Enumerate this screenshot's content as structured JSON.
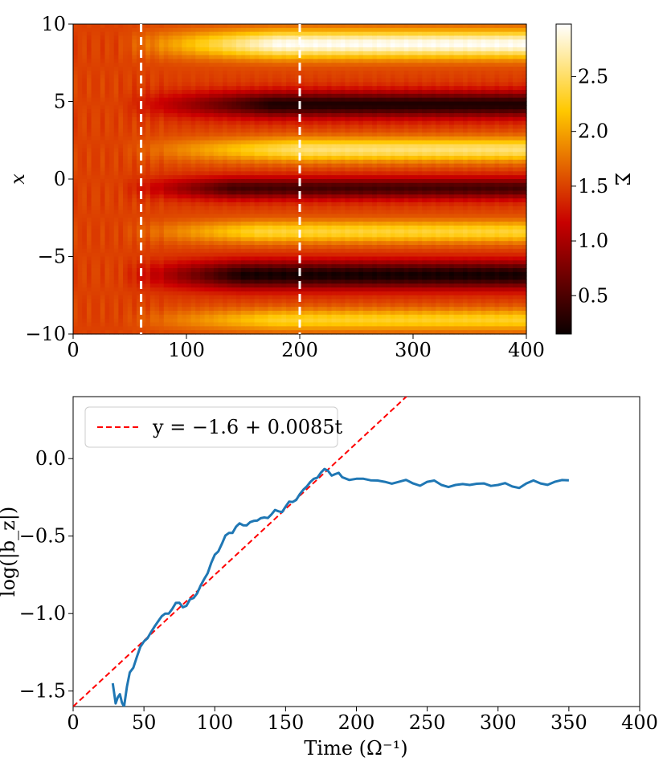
{
  "chart_data": [
    {
      "type": "heatmap",
      "xlabel": "",
      "ylabel": "x",
      "xlim": [
        0,
        400
      ],
      "ylim": [
        -10,
        10
      ],
      "xticks": [
        0,
        100,
        200,
        300,
        400
      ],
      "xtick_labels": [
        "0",
        "100",
        "200",
        "300",
        "400"
      ],
      "yticks": [
        -10,
        -5,
        0,
        5,
        10
      ],
      "ytick_labels": [
        "−10",
        "−5",
        "0",
        "5",
        "10"
      ],
      "colormap": "hot",
      "colorbar": {
        "label": "Σ",
        "range": [
          0.15,
          2.98
        ],
        "ticks": [
          0.5,
          1.0,
          1.5,
          2.0,
          2.5
        ],
        "tick_labels": [
          "0.5",
          "1.0",
          "1.5",
          "2.0",
          "2.5"
        ]
      },
      "vlines": [
        {
          "x": 60,
          "style": "dashed",
          "color": "#ffffff"
        },
        {
          "x": 200,
          "style": "dashed",
          "color": "#ffffff"
        }
      ],
      "bands": [
        {
          "center": 8.7,
          "width": 0.9,
          "amp": 1.45,
          "t_start": 180
        },
        {
          "center": 4.8,
          "width": 0.85,
          "amp": -1.25,
          "t_start": 175
        },
        {
          "center": 1.9,
          "width": 0.75,
          "amp": 1.05,
          "t_start": 200
        },
        {
          "center": -0.6,
          "width": 0.7,
          "amp": -1.05,
          "t_start": 140
        },
        {
          "center": -3.4,
          "width": 0.7,
          "amp": 0.85,
          "t_start": 165
        },
        {
          "center": -6.2,
          "width": 0.9,
          "amp": -1.3,
          "t_start": 150
        },
        {
          "center": -9.1,
          "width": 0.7,
          "amp": 0.8,
          "t_start": 180
        }
      ],
      "base_value": 1.5
    },
    {
      "type": "line",
      "xlabel": "Time (Ω⁻¹)",
      "ylabel": "log(|b_z|)",
      "xlim": [
        0,
        400
      ],
      "ylim": [
        -1.6,
        0.4
      ],
      "xticks": [
        0,
        50,
        100,
        150,
        200,
        250,
        300,
        350,
        400
      ],
      "xtick_labels": [
        "0",
        "50",
        "100",
        "150",
        "200",
        "250",
        "300",
        "350",
        "400"
      ],
      "yticks": [
        -1.5,
        -1.0,
        -0.5,
        0.0
      ],
      "ytick_labels": [
        "−1.5",
        "−1.0",
        "−0.5",
        "0.0"
      ],
      "series": [
        {
          "name": "log(|b_z|)",
          "color": "#1f77b4",
          "style": "solid",
          "x": [
            28,
            30,
            33,
            36,
            40,
            45,
            50,
            55,
            60,
            65,
            70,
            75,
            80,
            85,
            90,
            95,
            100,
            105,
            110,
            115,
            120,
            125,
            130,
            135,
            140,
            145,
            150,
            155,
            160,
            165,
            170,
            175,
            180,
            185,
            190,
            200,
            210,
            220,
            230,
            240,
            250,
            260,
            270,
            280,
            290,
            300,
            310,
            320,
            330,
            340,
            350
          ],
          "y": [
            -1.45,
            -1.58,
            -1.52,
            -1.6,
            -1.38,
            -1.28,
            -1.18,
            -1.12,
            -1.05,
            -1.0,
            -0.97,
            -0.93,
            -0.95,
            -0.9,
            -0.82,
            -0.74,
            -0.62,
            -0.55,
            -0.48,
            -0.44,
            -0.43,
            -0.41,
            -0.4,
            -0.38,
            -0.36,
            -0.34,
            -0.31,
            -0.28,
            -0.23,
            -0.18,
            -0.13,
            -0.09,
            -0.08,
            -0.1,
            -0.12,
            -0.13,
            -0.14,
            -0.15,
            -0.15,
            -0.16,
            -0.15,
            -0.17,
            -0.17,
            -0.17,
            -0.16,
            -0.17,
            -0.18,
            -0.16,
            -0.16,
            -0.15,
            -0.14
          ]
        },
        {
          "name": "y = −1.6 + 0.0085t",
          "color": "#ff0000",
          "style": "dashed",
          "intercept": -1.6,
          "slope": 0.0085
        }
      ],
      "legend": {
        "location": "top-left",
        "label": "y = −1.6 + 0.0085t"
      }
    }
  ]
}
